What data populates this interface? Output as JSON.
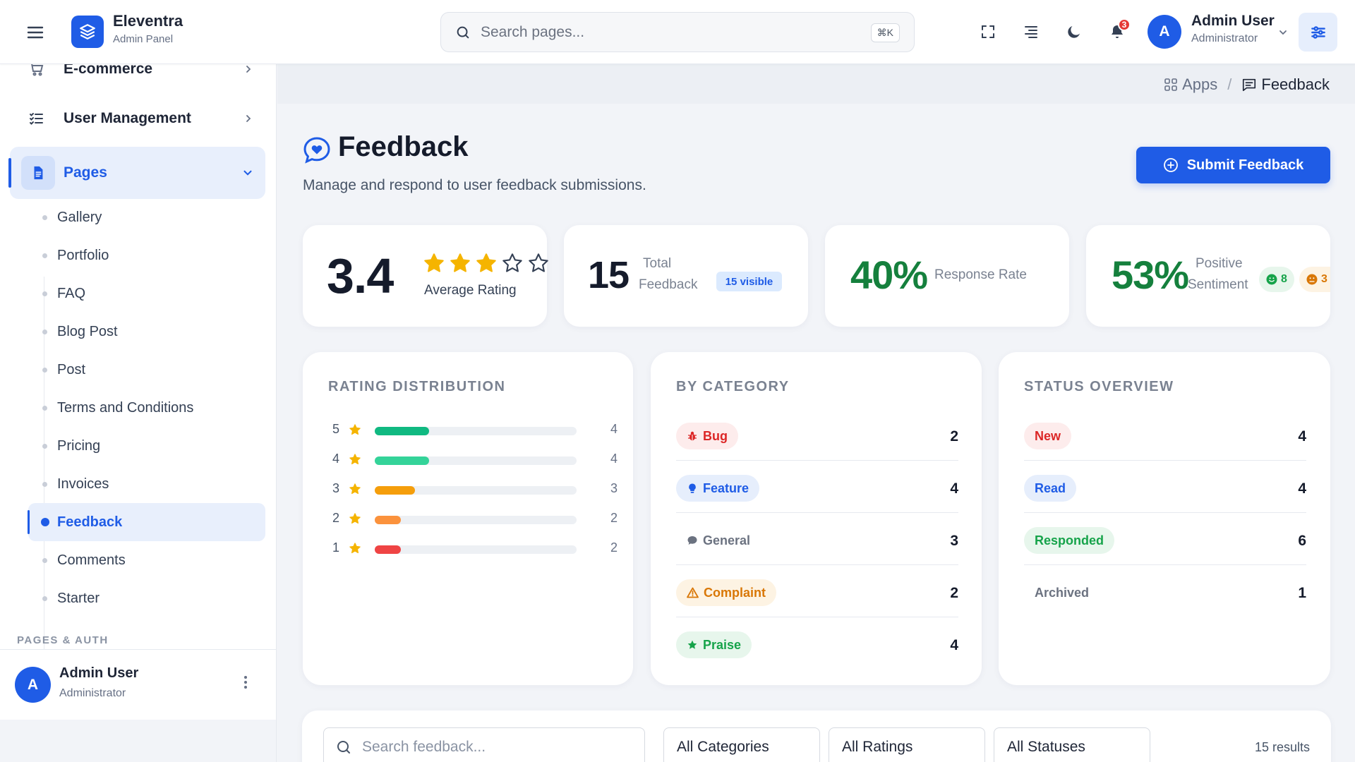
{
  "brand": {
    "name": "Eleventra",
    "subtitle": "Admin Panel"
  },
  "topbar": {
    "search_placeholder": "Search pages...",
    "shortcut": "⌘K",
    "notification_count": "3",
    "user": {
      "initial": "A",
      "name": "Admin User",
      "role": "Administrator"
    }
  },
  "sidebar": {
    "partial_item": "E-commerce",
    "items": [
      {
        "label": "User Management",
        "icon": "list-icon"
      },
      {
        "label": "Pages",
        "icon": "document-icon",
        "active": true
      }
    ],
    "sub_items": [
      {
        "label": "Gallery"
      },
      {
        "label": "Portfolio"
      },
      {
        "label": "FAQ"
      },
      {
        "label": "Blog Post"
      },
      {
        "label": "Post"
      },
      {
        "label": "Terms and Conditions"
      },
      {
        "label": "Pricing"
      },
      {
        "label": "Invoices"
      },
      {
        "label": "Feedback",
        "active": true
      },
      {
        "label": "Comments"
      },
      {
        "label": "Starter"
      }
    ],
    "section_label": "PAGES & AUTH",
    "footer": {
      "initial": "A",
      "name": "Admin User",
      "role": "Administrator"
    }
  },
  "breadcrumb": {
    "parent": "Apps",
    "separator": "/",
    "current": "Feedback"
  },
  "page": {
    "title": "Feedback",
    "subtitle": "Manage and respond to user feedback submissions.",
    "submit_button": "Submit Feedback"
  },
  "stats": {
    "average": {
      "value": "3.4",
      "label": "Average Rating",
      "stars_filled": 3,
      "stars_total": 5
    },
    "total": {
      "value": "15",
      "label_line1": "Total",
      "label_line2": "Feedback",
      "pill": "15 visible"
    },
    "response": {
      "value": "40%",
      "label": "Response Rate"
    },
    "sentiment": {
      "value": "53%",
      "label_line1": "Positive",
      "label_line2": "Sentiment",
      "positive_count": "8",
      "negative_count": "3"
    }
  },
  "rating_distribution": {
    "title": "RATING DISTRIBUTION",
    "rows": [
      {
        "stars": "5",
        "count": "4",
        "fraction": 0.27,
        "color": "#10b981"
      },
      {
        "stars": "4",
        "count": "4",
        "fraction": 0.27,
        "color": "#34d399"
      },
      {
        "stars": "3",
        "count": "3",
        "fraction": 0.2,
        "color": "#f59e0b"
      },
      {
        "stars": "2",
        "count": "2",
        "fraction": 0.13,
        "color": "#fb923c"
      },
      {
        "stars": "1",
        "count": "2",
        "fraction": 0.13,
        "color": "#ef4444"
      }
    ]
  },
  "by_category": {
    "title": "BY CATEGORY",
    "rows": [
      {
        "label": "Bug",
        "count": "2",
        "icon": "bug-icon",
        "color": "#dc2626",
        "bg": "#fdecec"
      },
      {
        "label": "Feature",
        "count": "4",
        "icon": "lightbulb-icon",
        "color": "#1f5ce6",
        "bg": "#e6eefc"
      },
      {
        "label": "General",
        "count": "3",
        "icon": "chat-bubble-icon",
        "color": "#6b7280",
        "bg": "transparent"
      },
      {
        "label": "Complaint",
        "count": "2",
        "icon": "warning-icon",
        "color": "#d97706",
        "bg": "#fdf3e3"
      },
      {
        "label": "Praise",
        "count": "4",
        "icon": "star-icon",
        "color": "#16a34a",
        "bg": "#e7f6ec"
      }
    ]
  },
  "status_overview": {
    "title": "STATUS OVERVIEW",
    "rows": [
      {
        "label": "New",
        "count": "4",
        "color": "#dc2626",
        "bg": "#fdecec"
      },
      {
        "label": "Read",
        "count": "4",
        "color": "#1f5ce6",
        "bg": "#e6eefc"
      },
      {
        "label": "Responded",
        "count": "6",
        "color": "#16a34a",
        "bg": "#e7f6ec"
      },
      {
        "label": "Archived",
        "count": "1",
        "color": "#6b7280",
        "bg": "transparent"
      }
    ]
  },
  "filters": {
    "search_placeholder": "Search feedback...",
    "category": "All Categories",
    "rating": "All Ratings",
    "status": "All Statuses",
    "results": "15 results"
  },
  "colors": {
    "accent": "#1f5ce6",
    "positive": "#15803d",
    "star": "#f5b400"
  }
}
